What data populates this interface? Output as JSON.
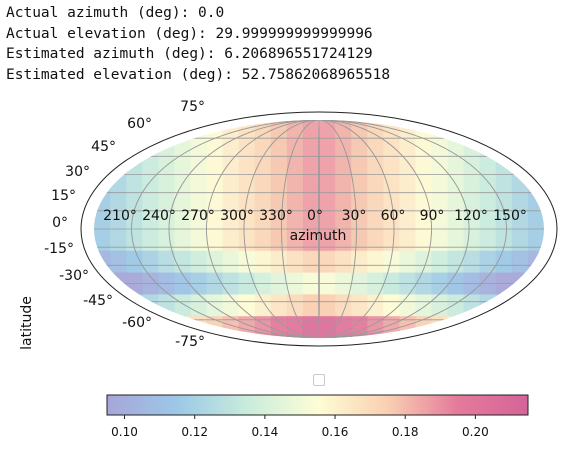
{
  "output_lines": [
    "Actual azimuth (deg): 0.0",
    "Actual elevation (deg): 29.999999999999996",
    "Estimated azimuth (deg): 6.206896551724129",
    "Estimated elevation (deg): 52.75862068965518"
  ],
  "chart_data": {
    "type": "heatmap",
    "projection": "mollweide-like",
    "xlabel": "azimuth",
    "ylabel": "latitude",
    "x_tick_labels": [
      "210°",
      "240°",
      "270°",
      "300°",
      "330°",
      "0°",
      "30°",
      "60°",
      "90°",
      "120°",
      "150°"
    ],
    "lat_tick_labels_left": [
      "75°",
      "60°",
      "45°",
      "30°",
      "15°",
      "0°",
      "-15°",
      "-30°",
      "-45°",
      "-60°",
      "-75°"
    ],
    "colorbar": {
      "vmin": 0.095,
      "vmax": 0.215,
      "tick_values": [
        0.1,
        0.12,
        0.14,
        0.16,
        0.18,
        0.2
      ],
      "tick_labels": [
        "0.10",
        "0.12",
        "0.14",
        "0.16",
        "0.18",
        "0.20"
      ],
      "colormap": [
        "#a6a6d8",
        "#9cc8e6",
        "#c9ecdc",
        "#fdfdd6",
        "#f9d0b2",
        "#e47a9b",
        "#d4649a"
      ]
    },
    "grid": true
  }
}
